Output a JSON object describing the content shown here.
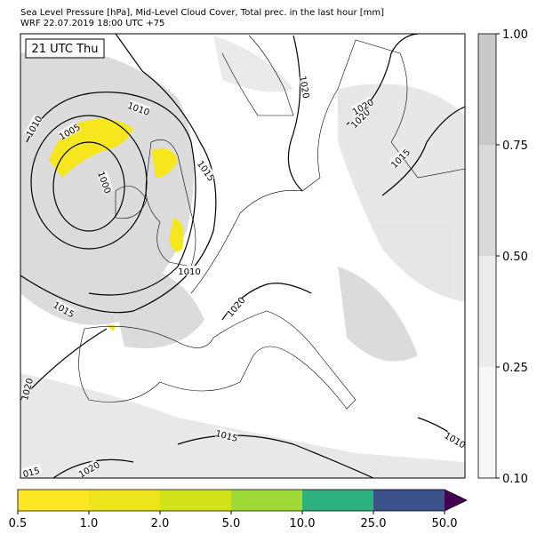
{
  "header": {
    "title": "Sea Level Pressure [hPa], Mid-Level Cloud Cover, Total prec. in the last hour [mm]",
    "subtitle": "WRF 22.07.2019 18:00 UTC +75"
  },
  "map": {
    "time_label": "21 UTC Thu",
    "contour_labels": [
      "1010",
      "1005",
      "1010",
      "1000",
      "1015",
      "1010",
      "1015",
      "1020",
      "1020",
      "1015",
      "1020",
      "015",
      "1010",
      "1020",
      "1020",
      "1020",
      "1015"
    ]
  },
  "cloud_colorbar": {
    "ticks": [
      "0.10",
      "0.25",
      "0.50",
      "0.75",
      "1.00"
    ],
    "colors": [
      "#f7f7f7",
      "#ececec",
      "#dadada",
      "#c8c8c8"
    ]
  },
  "precip_colorbar": {
    "ticks": [
      "0.5",
      "1.0",
      "2.0",
      "5.0",
      "10.0",
      "25.0",
      "50.0"
    ],
    "colors": [
      "#fde725",
      "#ede51b",
      "#d2e21b",
      "#a0da39",
      "#2db27d",
      "#3b528b",
      "#440154"
    ]
  }
}
